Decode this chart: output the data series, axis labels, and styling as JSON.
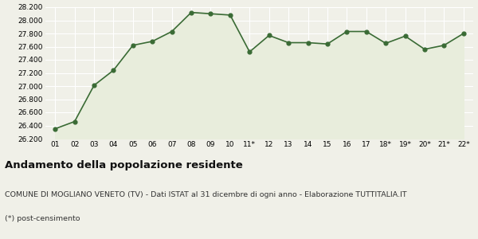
{
  "x_labels": [
    "01",
    "02",
    "03",
    "04",
    "05",
    "06",
    "07",
    "08",
    "09",
    "10",
    "11*",
    "12",
    "13",
    "14",
    "15",
    "16",
    "17",
    "18*",
    "19*",
    "20*",
    "21*",
    "22*"
  ],
  "y_values": [
    26350,
    26460,
    27010,
    27240,
    27620,
    27680,
    27830,
    28120,
    28100,
    28080,
    27520,
    27770,
    27660,
    27660,
    27640,
    27830,
    27830,
    27650,
    27760,
    27560,
    27620,
    27800
  ],
  "line_color": "#3a6b35",
  "fill_color": "#e8eddc",
  "marker_color": "#3a6b35",
  "bg_color": "#f0f0e8",
  "grid_color": "#ffffff",
  "ylim": [
    26200,
    28200
  ],
  "ytick_step": 200,
  "title": "Andamento della popolazione residente",
  "subtitle": "COMUNE DI MOGLIANO VENETO (TV) - Dati ISTAT al 31 dicembre di ogni anno - Elaborazione TUTTITALIA.IT",
  "footnote": "(*) post-censimento",
  "title_fontsize": 9.5,
  "subtitle_fontsize": 6.8,
  "footnote_fontsize": 6.8
}
